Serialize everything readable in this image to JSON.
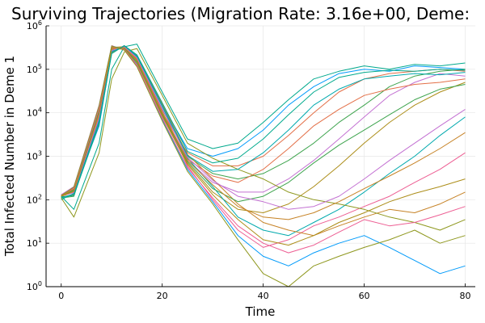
{
  "chart_data": {
    "type": "line",
    "title": "Surviving Trajectories (Migration Rate: 3.16e+00, Deme:",
    "xlabel": "Time",
    "ylabel": "Total Infected Number in Deme 1",
    "xlim": [
      -3,
      82
    ],
    "ylim": [
      1,
      1000000
    ],
    "y_scale": "log10",
    "x_ticks": [
      {
        "value": 0,
        "label": "0"
      },
      {
        "value": 20,
        "label": "20"
      },
      {
        "value": 40,
        "label": "40"
      },
      {
        "value": 60,
        "label": "60"
      },
      {
        "value": 80,
        "label": "80"
      }
    ],
    "y_ticks": [
      {
        "value": 1,
        "base": "10",
        "exp": "0"
      },
      {
        "value": 10,
        "base": "10",
        "exp": "1"
      },
      {
        "value": 100,
        "base": "10",
        "exp": "2"
      },
      {
        "value": 1000,
        "base": "10",
        "exp": "3"
      },
      {
        "value": 10000,
        "base": "10",
        "exp": "4"
      },
      {
        "value": 100000,
        "base": "10",
        "exp": "5"
      },
      {
        "value": 1000000,
        "base": "10",
        "exp": "6"
      }
    ],
    "grid": true,
    "legend": "none",
    "palette": [
      "#009AFA",
      "#E36F47",
      "#3EA44E",
      "#C371D2",
      "#AC8D18",
      "#00A9AD",
      "#ED5E93",
      "#C68225",
      "#00A98D",
      "#8E971D"
    ],
    "series": [
      {
        "x": [
          0,
          2.5,
          7.5,
          10,
          12.5,
          15,
          20,
          25,
          30,
          35,
          40,
          45,
          50,
          55,
          60,
          65,
          70,
          75,
          80
        ],
        "y": [
          120,
          150,
          5000,
          250000,
          350000,
          200000,
          15000,
          1500,
          1000,
          1500,
          4000,
          15000,
          40000,
          80000,
          100000,
          90000,
          120000,
          110000,
          100000
        ]
      },
      {
        "x": [
          0,
          2.5,
          7.5,
          10,
          12.5,
          15,
          20,
          25,
          30,
          35,
          40,
          45,
          50,
          55,
          60,
          65,
          70,
          75,
          80
        ],
        "y": [
          120,
          180,
          12000,
          300000,
          320000,
          150000,
          10000,
          1200,
          600,
          600,
          1000,
          3000,
          10000,
          30000,
          60000,
          80000,
          90000,
          100000,
          90000
        ]
      },
      {
        "x": [
          0,
          2.5,
          7.5,
          10,
          12.5,
          15,
          20,
          25,
          30,
          35,
          40,
          45,
          50,
          55,
          60,
          65,
          70,
          75,
          80
        ],
        "y": [
          110,
          120,
          8000,
          280000,
          300000,
          180000,
          12000,
          1000,
          400,
          300,
          400,
          800,
          2000,
          6000,
          15000,
          40000,
          70000,
          90000,
          100000
        ]
      },
      {
        "x": [
          0,
          2.5,
          7.5,
          10,
          12.5,
          15,
          20,
          25,
          30,
          35,
          40,
          45,
          50,
          55,
          60,
          65,
          70,
          75,
          80
        ],
        "y": [
          130,
          200,
          15000,
          350000,
          280000,
          120000,
          8000,
          800,
          250,
          150,
          150,
          300,
          800,
          2500,
          8000,
          25000,
          50000,
          80000,
          70000
        ]
      },
      {
        "x": [
          0,
          2.5,
          7.5,
          10,
          12.5,
          15,
          20,
          25,
          30,
          35,
          40,
          45,
          50,
          55,
          60,
          65,
          70,
          75,
          80
        ],
        "y": [
          120,
          160,
          10000,
          320000,
          330000,
          160000,
          9000,
          700,
          150,
          60,
          50,
          80,
          200,
          600,
          2000,
          6000,
          15000,
          30000,
          50000
        ]
      },
      {
        "x": [
          0,
          2.5,
          7.5,
          10,
          12.5,
          15,
          20,
          25,
          30,
          35,
          40,
          45,
          50,
          55,
          60,
          65,
          70,
          75,
          80
        ],
        "y": [
          100,
          140,
          7000,
          260000,
          340000,
          190000,
          14000,
          900,
          200,
          40,
          20,
          15,
          30,
          60,
          150,
          400,
          1000,
          3000,
          8000
        ]
      },
      {
        "x": [
          0,
          2.5,
          7.5,
          10,
          12.5,
          15,
          20,
          25,
          30,
          35,
          40,
          45,
          50,
          55,
          60,
          65,
          70,
          75,
          80
        ],
        "y": [
          120,
          170,
          9000,
          300000,
          310000,
          170000,
          11000,
          600,
          100,
          20,
          8,
          12,
          25,
          40,
          70,
          120,
          250,
          500,
          1200
        ]
      },
      {
        "x": [
          0,
          2.5,
          7.5,
          10,
          12.5,
          15,
          20,
          25,
          30,
          35,
          40,
          45,
          50,
          55,
          60,
          65,
          70,
          75,
          80
        ],
        "y": [
          115,
          130,
          6000,
          240000,
          350000,
          210000,
          16000,
          1100,
          300,
          80,
          30,
          20,
          15,
          25,
          40,
          60,
          50,
          80,
          150
        ]
      },
      {
        "x": [
          0,
          2.5,
          7.5,
          10,
          12.5,
          15,
          20,
          25,
          30,
          35,
          40,
          45,
          50,
          55,
          60,
          65,
          70,
          75,
          80
        ],
        "y": [
          120,
          60,
          2000,
          100000,
          330000,
          380000,
          30000,
          2500,
          1500,
          2000,
          6000,
          20000,
          60000,
          90000,
          120000,
          100000,
          130000,
          120000,
          140000
        ]
      },
      {
        "x": [
          0,
          2.5,
          7.5,
          10,
          12.5,
          15,
          20,
          25,
          30,
          35,
          40,
          45,
          50,
          55,
          60,
          65,
          70,
          75,
          80
        ],
        "y": [
          110,
          40,
          1200,
          60000,
          250000,
          300000,
          25000,
          2000,
          900,
          500,
          300,
          150,
          100,
          80,
          60,
          40,
          30,
          20,
          35
        ]
      },
      {
        "x": [
          0,
          2.5,
          7.5,
          10,
          12.5,
          15,
          20,
          25,
          30,
          35,
          40,
          45,
          50,
          55,
          60,
          65,
          70,
          75,
          80
        ],
        "y": [
          125,
          190,
          14000,
          340000,
          290000,
          130000,
          7000,
          500,
          90,
          15,
          5,
          3,
          6,
          10,
          15,
          8,
          4,
          2,
          3
        ]
      },
      {
        "x": [
          0,
          2.5,
          7.5,
          10,
          12.5,
          15,
          20,
          25,
          30,
          35,
          40,
          45,
          50,
          55,
          60,
          65,
          70,
          75,
          80
        ],
        "y": [
          120,
          150,
          8500,
          290000,
          320000,
          175000,
          10500,
          850,
          350,
          250,
          500,
          1500,
          5000,
          12000,
          25000,
          35000,
          45000,
          50000,
          60000
        ]
      },
      {
        "x": [
          0,
          2.5,
          7.5,
          10,
          12.5,
          15,
          20,
          25,
          30,
          35,
          40,
          45,
          50,
          55,
          60,
          65,
          70,
          75,
          80
        ],
        "y": [
          118,
          165,
          11000,
          310000,
          300000,
          150000,
          9500,
          750,
          180,
          90,
          120,
          250,
          700,
          1800,
          4000,
          9000,
          20000,
          35000,
          45000
        ]
      },
      {
        "x": [
          0,
          2.5,
          7.5,
          10,
          12.5,
          15,
          20,
          25,
          30,
          35,
          40,
          45,
          50,
          55,
          60,
          65,
          70,
          75,
          80
        ],
        "y": [
          122,
          145,
          7500,
          270000,
          330000,
          185000,
          12500,
          950,
          280,
          120,
          90,
          60,
          70,
          120,
          300,
          800,
          2000,
          5000,
          12000
        ]
      },
      {
        "x": [
          0,
          2.5,
          7.5,
          10,
          12.5,
          15,
          20,
          25,
          30,
          35,
          40,
          45,
          50,
          55,
          60,
          65,
          70,
          75,
          80
        ],
        "y": [
          120,
          175,
          13000,
          330000,
          290000,
          140000,
          8500,
          650,
          130,
          35,
          12,
          9,
          15,
          30,
          50,
          90,
          140,
          200,
          300
        ]
      },
      {
        "x": [
          0,
          2.5,
          7.5,
          10,
          12.5,
          15,
          20,
          25,
          30,
          35,
          40,
          45,
          50,
          55,
          60,
          65,
          70,
          75,
          80
        ],
        "y": [
          112,
          135,
          6500,
          250000,
          345000,
          200000,
          14500,
          1050,
          450,
          500,
          1200,
          4000,
          15000,
          35000,
          60000,
          70000,
          80000,
          75000,
          85000
        ]
      },
      {
        "x": [
          0,
          2.5,
          7.5,
          10,
          12.5,
          15,
          20,
          25,
          30,
          35,
          40,
          45,
          50,
          55,
          60,
          65,
          70,
          75,
          80
        ],
        "y": [
          128,
          185,
          12500,
          335000,
          285000,
          125000,
          7500,
          550,
          110,
          25,
          10,
          6,
          9,
          18,
          35,
          25,
          30,
          45,
          70
        ]
      },
      {
        "x": [
          0,
          2.5,
          7.5,
          10,
          12.5,
          15,
          20,
          25,
          30,
          35,
          40,
          45,
          50,
          55,
          60,
          65,
          70,
          75,
          80
        ],
        "y": [
          120,
          155,
          9500,
          305000,
          315000,
          165000,
          10000,
          800,
          220,
          70,
          40,
          35,
          50,
          90,
          180,
          350,
          700,
          1500,
          3500
        ]
      },
      {
        "x": [
          0,
          2.5,
          7.5,
          10,
          12.5,
          15,
          20,
          25,
          30,
          35,
          40,
          45,
          50,
          55,
          60,
          65,
          70,
          75,
          80
        ],
        "y": [
          116,
          125,
          5500,
          230000,
          350000,
          215000,
          17000,
          1300,
          700,
          900,
          2500,
          9000,
          30000,
          65000,
          85000,
          95000,
          90000,
          100000,
          95000
        ]
      },
      {
        "x": [
          0,
          2.5,
          7.5,
          10,
          12.5,
          15,
          20,
          25,
          30,
          35,
          40,
          45,
          50,
          55,
          60,
          65,
          70,
          75,
          80
        ],
        "y": [
          124,
          195,
          14500,
          345000,
          275000,
          115000,
          6500,
          450,
          80,
          12,
          2,
          1,
          3,
          5,
          8,
          12,
          20,
          10,
          15
        ]
      }
    ]
  }
}
